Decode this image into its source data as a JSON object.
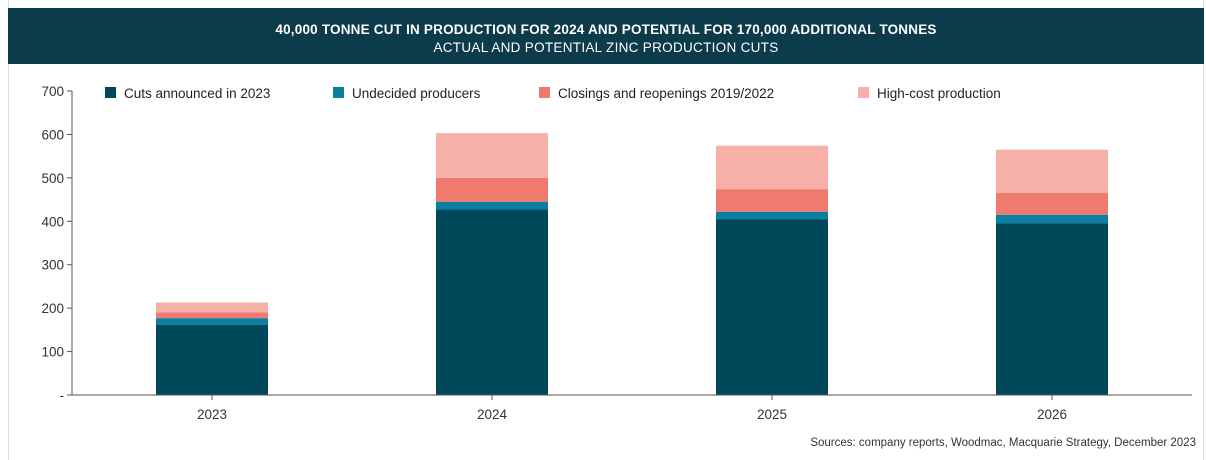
{
  "header": {
    "title": "40,000 TONNE CUT IN PRODUCTION FOR 2024 AND POTENTIAL FOR 170,000 ADDITIONAL TONNES",
    "subtitle": "ACTUAL AND POTENTIAL ZINC PRODUCTION CUTS"
  },
  "colors": {
    "header_bg": "#0c3b4b",
    "cuts_2023": "#00485a",
    "undecided": "#0b7fa0",
    "closings": "#f07a6e",
    "high_cost": "#f7b0a8"
  },
  "source": "Sources: company reports, Woodmac, Macquarie Strategy, December 2023",
  "chart_data": {
    "type": "bar",
    "stacked": true,
    "categories": [
      "2023",
      "2024",
      "2025",
      "2026"
    ],
    "series": [
      {
        "name": "Cuts announced in 2023",
        "color": "#00485a",
        "values": [
          162,
          427,
          405,
          395
        ]
      },
      {
        "name": "Undecided producers",
        "color": "#0b7fa0",
        "values": [
          15,
          18,
          17,
          20
        ]
      },
      {
        "name": "Closings and reopenings 2019/2022",
        "color": "#f07a6e",
        "values": [
          13,
          55,
          52,
          50
        ]
      },
      {
        "name": "High-cost production",
        "color": "#f7b0a8",
        "values": [
          23,
          103,
          100,
          100
        ]
      }
    ],
    "ylim": [
      0,
      700
    ],
    "yticks": [
      0,
      100,
      200,
      300,
      400,
      500,
      600,
      700
    ],
    "ytick_labels": [
      "-",
      "100",
      "200",
      "300",
      "400",
      "500",
      "600",
      "700"
    ],
    "grid": false,
    "legend_position": "top"
  }
}
